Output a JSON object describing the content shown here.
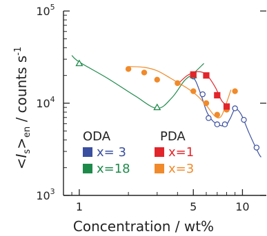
{
  "chart_data": {
    "type": "scatter",
    "xlabel": "Concentration / wt%",
    "ylabel_parts": {
      "open": "<",
      "var": "I",
      "var_sub": "s",
      "close": ">",
      "close_sub": "en",
      "unit": " / counts s",
      "unit_sup": "-1"
    },
    "x_scale": "log",
    "y_scale": "log",
    "xlim": [
      0.8,
      14
    ],
    "ylim": [
      1000,
      100000
    ],
    "x_ticks": [
      {
        "value": 1,
        "label": "1"
      },
      {
        "value": 5,
        "label": "5"
      },
      {
        "value": 10,
        "label": "10"
      }
    ],
    "y_ticks": [
      {
        "value": 1000,
        "base": "10",
        "exp": "3"
      },
      {
        "value": 10000,
        "base": "10",
        "exp": "4"
      },
      {
        "value": 100000,
        "base": "10",
        "exp": "5"
      }
    ],
    "legend": {
      "placement": "bottom-left",
      "groups": [
        {
          "title": "ODA",
          "entries": [
            {
              "series": 0,
              "label": "x= 3"
            },
            {
              "series": 1,
              "label": "x=18"
            }
          ]
        },
        {
          "title": "PDA",
          "entries": [
            {
              "series": 2,
              "label": "x=1"
            },
            {
              "series": 3,
              "label": "x=3"
            }
          ]
        }
      ]
    },
    "series": [
      {
        "group": "ODA",
        "label": "x= 3",
        "color": "#3a4fa0",
        "marker": "open-circle",
        "points": [
          [
            5.0,
            19500
          ],
          [
            5.7,
            12500
          ],
          [
            6.2,
            6900
          ],
          [
            7.0,
            5900
          ],
          [
            7.8,
            5900
          ],
          [
            9.0,
            8800
          ],
          [
            10.2,
            6600
          ],
          [
            12.2,
            3300
          ]
        ],
        "curve": [
          [
            4.9,
            20000
          ],
          [
            5.2,
            17000
          ],
          [
            5.6,
            12000
          ],
          [
            6.1,
            7800
          ],
          [
            6.8,
            6100
          ],
          [
            7.8,
            5700
          ],
          [
            8.4,
            6800
          ],
          [
            9.0,
            8600
          ],
          [
            9.8,
            7600
          ],
          [
            11.0,
            4700
          ],
          [
            12.5,
            2900
          ],
          [
            13.0,
            2600
          ]
        ]
      },
      {
        "group": "ODA",
        "label": "x=18",
        "color": "#1e8a4a",
        "marker": "open-triangle",
        "points": [
          [
            1.0,
            27000
          ],
          [
            3.0,
            9000
          ],
          [
            5.0,
            20000
          ]
        ],
        "curve": [
          [
            0.9,
            33000
          ],
          [
            1.0,
            28000
          ],
          [
            1.5,
            18500
          ],
          [
            2.2,
            12000
          ],
          [
            3.0,
            8800
          ],
          [
            3.7,
            11500
          ],
          [
            4.4,
            17500
          ],
          [
            5.0,
            21000
          ],
          [
            5.8,
            27000
          ]
        ]
      },
      {
        "group": "PDA",
        "label": "x=1",
        "color": "#e2252b",
        "marker": "filled-square",
        "points": [
          [
            5.0,
            20500
          ],
          [
            6.0,
            20000
          ],
          [
            7.0,
            12200
          ],
          [
            8.0,
            9200
          ]
        ],
        "curve": [
          [
            4.0,
            16000
          ],
          [
            4.6,
            20000
          ],
          [
            5.3,
            22000
          ],
          [
            6.0,
            20500
          ],
          [
            6.8,
            15000
          ],
          [
            7.5,
            10500
          ],
          [
            8.3,
            9200
          ]
        ]
      },
      {
        "group": "PDA",
        "label": "x=3",
        "color": "#f08a2a",
        "marker": "filled-circle",
        "points": [
          [
            2.0,
            23500
          ],
          [
            2.5,
            21500
          ],
          [
            3.0,
            18000
          ],
          [
            4.0,
            16500
          ],
          [
            5.0,
            13500
          ],
          [
            6.0,
            10000
          ],
          [
            7.0,
            7500
          ],
          [
            8.0,
            8500
          ],
          [
            9.0,
            13500
          ]
        ],
        "curve": [
          [
            2.0,
            25000
          ],
          [
            2.5,
            24500
          ],
          [
            3.0,
            22500
          ],
          [
            3.6,
            18800
          ],
          [
            4.0,
            16800
          ],
          [
            4.6,
            14500
          ],
          [
            5.3,
            12000
          ],
          [
            6.0,
            9500
          ],
          [
            6.8,
            7200
          ],
          [
            7.4,
            7200
          ],
          [
            8.0,
            10200
          ],
          [
            8.5,
            14000
          ]
        ]
      }
    ]
  }
}
